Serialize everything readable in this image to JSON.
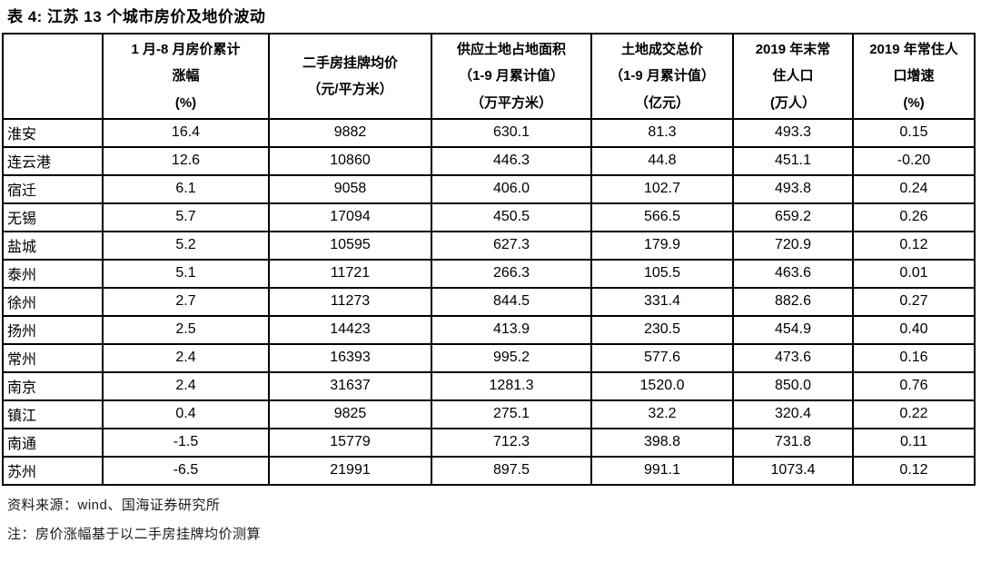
{
  "title": "表 4:  江苏 13 个城市房价及地价波动",
  "table": {
    "headers": [
      {
        "lines": []
      },
      {
        "lines": [
          "1 月-8 月房价累计",
          "涨幅",
          "(%)"
        ]
      },
      {
        "lines": [
          "二手房挂牌均价",
          "（元/平方米）"
        ]
      },
      {
        "lines": [
          "供应土地占地面积",
          "（1-9 月累计值）",
          "（万平方米）"
        ]
      },
      {
        "lines": [
          "土地成交总价",
          "（1-9 月累计值）",
          "（亿元）"
        ]
      },
      {
        "lines": [
          "2019 年末常",
          "住人口",
          "(万人）"
        ]
      },
      {
        "lines": [
          "2019 年常住人",
          "口增速",
          "(%)"
        ]
      }
    ],
    "rows": [
      {
        "city": "淮安",
        "values": [
          "16.4",
          "9882",
          "630.1",
          "81.3",
          "493.3",
          "0.15"
        ]
      },
      {
        "city": "连云港",
        "values": [
          "12.6",
          "10860",
          "446.3",
          "44.8",
          "451.1",
          "-0.20"
        ]
      },
      {
        "city": "宿迁",
        "values": [
          "6.1",
          "9058",
          "406.0",
          "102.7",
          "493.8",
          "0.24"
        ]
      },
      {
        "city": "无锡",
        "values": [
          "5.7",
          "17094",
          "450.5",
          "566.5",
          "659.2",
          "0.26"
        ]
      },
      {
        "city": "盐城",
        "values": [
          "5.2",
          "10595",
          "627.3",
          "179.9",
          "720.9",
          "0.12"
        ]
      },
      {
        "city": "泰州",
        "values": [
          "5.1",
          "11721",
          "266.3",
          "105.5",
          "463.6",
          "0.01"
        ]
      },
      {
        "city": "徐州",
        "values": [
          "2.7",
          "11273",
          "844.5",
          "331.4",
          "882.6",
          "0.27"
        ]
      },
      {
        "city": "扬州",
        "values": [
          "2.5",
          "14423",
          "413.9",
          "230.5",
          "454.9",
          "0.40"
        ]
      },
      {
        "city": "常州",
        "values": [
          "2.4",
          "16393",
          "995.2",
          "577.6",
          "473.6",
          "0.16"
        ]
      },
      {
        "city": "南京",
        "values": [
          "2.4",
          "31637",
          "1281.3",
          "1520.0",
          "850.0",
          "0.76"
        ]
      },
      {
        "city": "镇江",
        "values": [
          "0.4",
          "9825",
          "275.1",
          "32.2",
          "320.4",
          "0.22"
        ]
      },
      {
        "city": "南通",
        "values": [
          "-1.5",
          "15779",
          "712.3",
          "398.8",
          "731.8",
          "0.11"
        ]
      },
      {
        "city": "苏州",
        "values": [
          "-6.5",
          "21991",
          "897.5",
          "991.1",
          "1073.4",
          "0.12"
        ]
      }
    ]
  },
  "footer": {
    "source": "资料来源：wind、国海证券研究所",
    "note": "注：房价涨幅基于以二手房挂牌均价测算"
  }
}
